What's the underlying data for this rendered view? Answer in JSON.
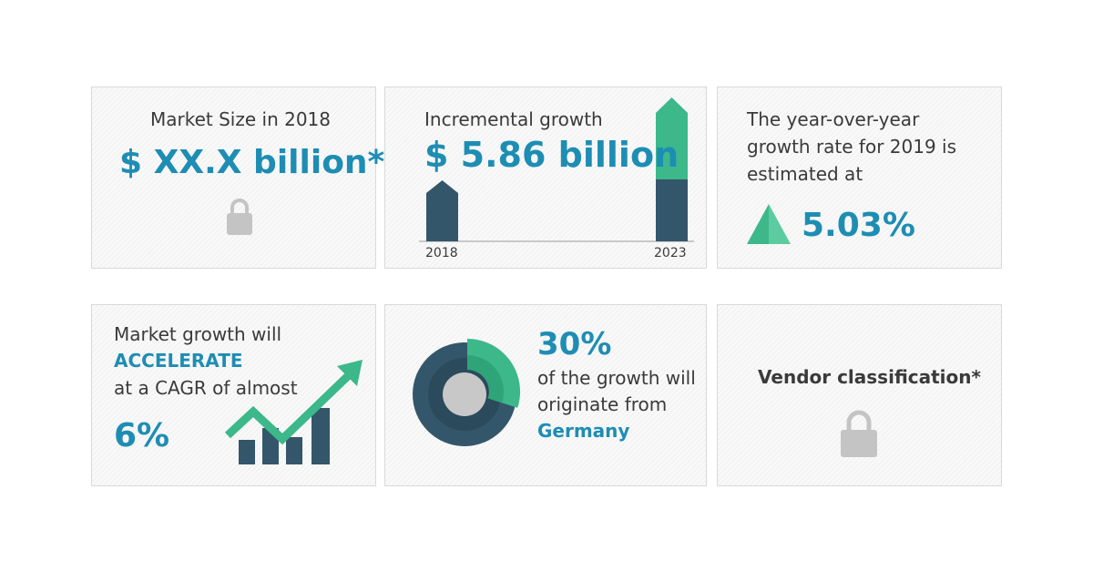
{
  "cards": [
    {
      "title": "Market Size in 2018",
      "value": "$ XX.X billion*"
    },
    {
      "title": "Incremental growth",
      "value": "$ 5.86 billion",
      "start_label": "2018",
      "end_label": "2023"
    },
    {
      "lines": [
        "The year-over-year",
        "growth rate for 2019 is",
        "estimated at"
      ],
      "value": "5.03%"
    },
    {
      "lines": [
        "Market growth will",
        "ACCELERATE",
        "at a CAGR of almost"
      ],
      "value": "6%"
    },
    {
      "value": "30%",
      "lines": [
        "of the growth will",
        "originate from"
      ],
      "region": "Germany"
    },
    {
      "title": "Vendor classification*"
    }
  ]
}
